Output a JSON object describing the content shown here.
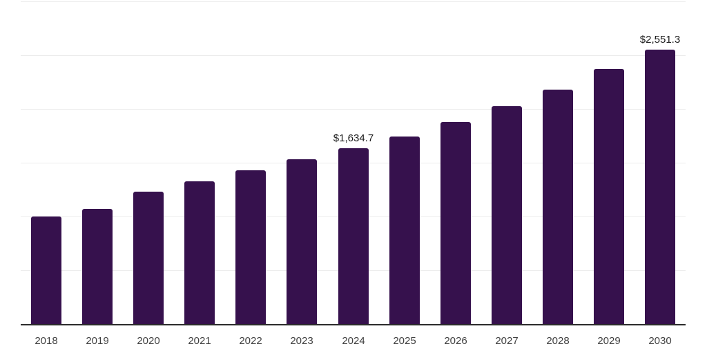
{
  "chart_data": {
    "type": "bar",
    "title": "",
    "xlabel": "",
    "ylabel": "",
    "categories": [
      "2018",
      "2019",
      "2020",
      "2021",
      "2022",
      "2023",
      "2024",
      "2025",
      "2026",
      "2027",
      "2028",
      "2029",
      "2030"
    ],
    "values": [
      1000,
      1070,
      1230,
      1325,
      1430,
      1530,
      1634.7,
      1745,
      1880,
      2025,
      2180,
      2370,
      2551.3
    ],
    "value_labels": {
      "2024": "$1,634.7",
      "2030": "$2,551.3"
    },
    "ylim": [
      0,
      3000
    ],
    "grid_step": 500,
    "grid": true,
    "legend": false,
    "bar_color": "#36114d",
    "axis_line_color": "#2b2b2b",
    "gridline_color": "#ececec",
    "value_label_color": "#1a1a1a",
    "tick_label_color": "#404040"
  }
}
